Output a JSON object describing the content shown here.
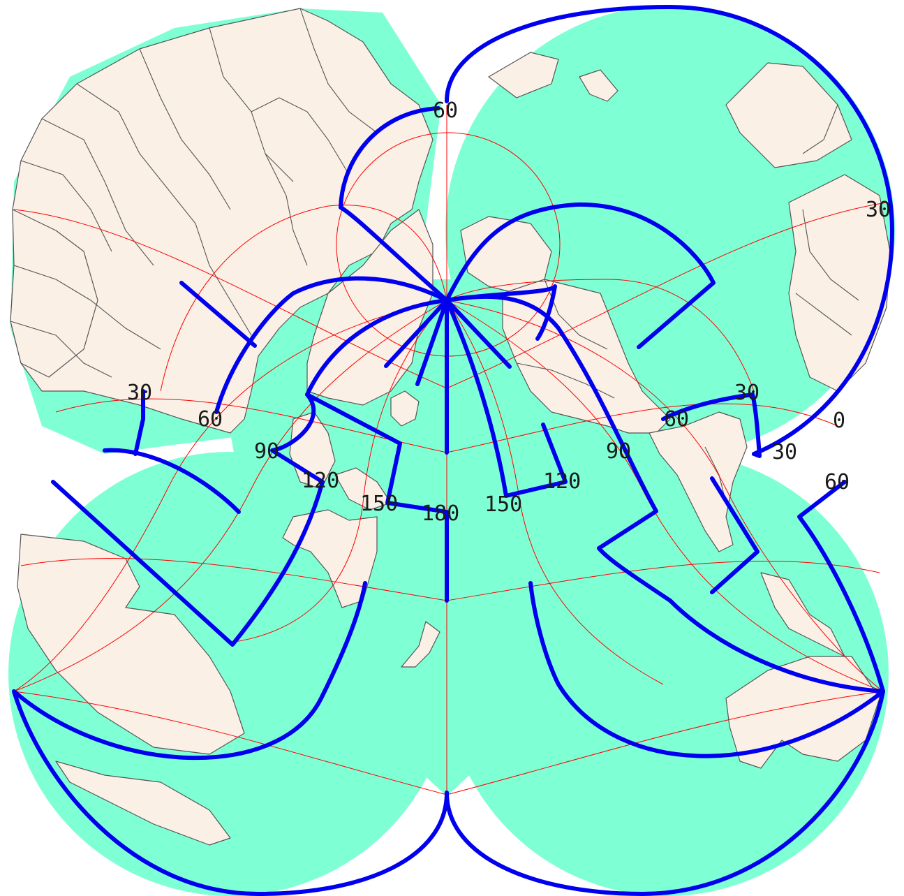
{
  "colors": {
    "ocean": "#7fffd4",
    "land": "#faf0e6",
    "coastline": "#555555",
    "graticule": "#ff0000",
    "interruptions": "#0000ee",
    "labels": "#1a1a1a"
  },
  "graticule_labels": {
    "lat_60_top": "60",
    "lat_30_right": "30",
    "lat_30_left": "30",
    "lon_60_left": "60",
    "lon_90_left": "90",
    "lon_120_left": "120",
    "lon_150_left": "150",
    "lon_180": "180",
    "lon_150_right": "150",
    "lon_120_right": "120",
    "lon_90_right": "90",
    "lon_60_right": "60",
    "lon_30_right": "30",
    "lon_0": "0",
    "lat_30_right_lower": "30",
    "lat_60_right_lower": "60"
  }
}
